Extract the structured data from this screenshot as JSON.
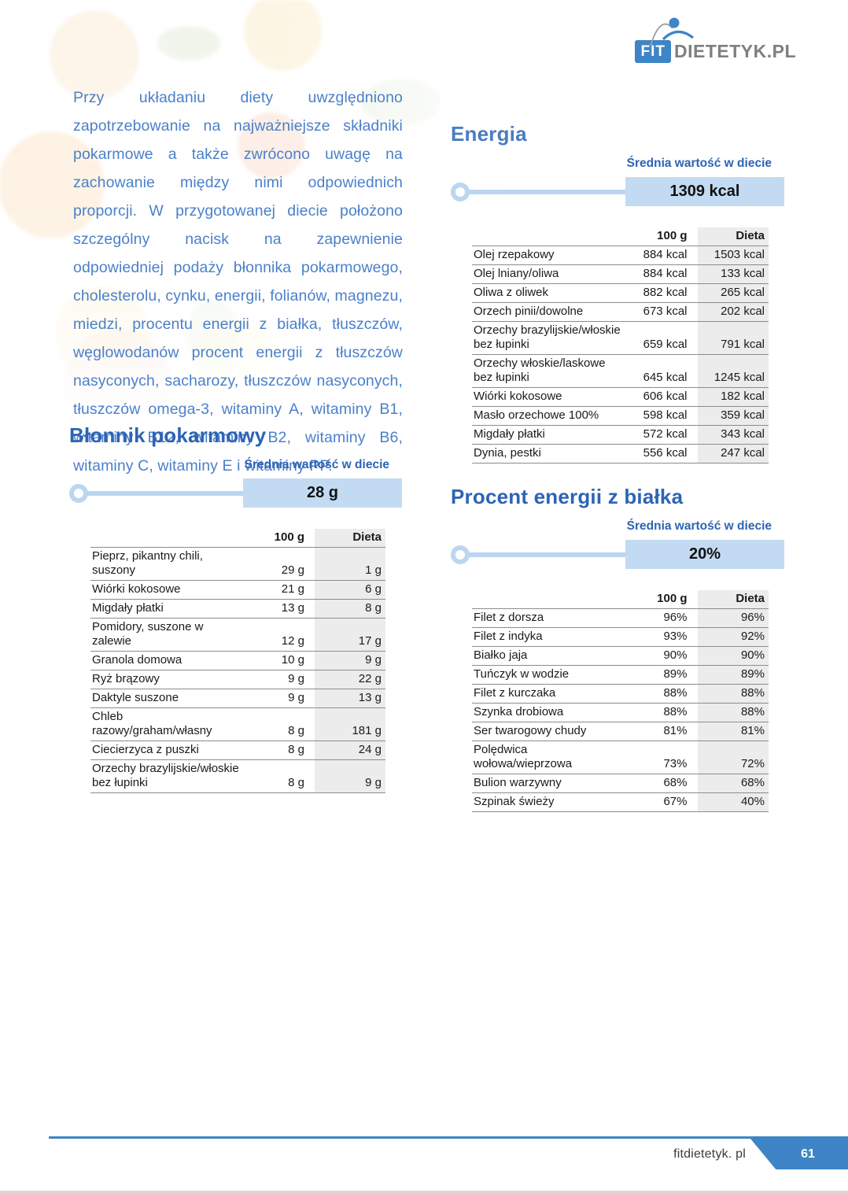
{
  "colors": {
    "brand-blue": "#3d85c6",
    "heading-blue": "#2d64b4",
    "heading-light": "#4a7cc2",
    "intro-blue": "#4b80ca",
    "pill-bg": "#c3dbf2",
    "line-blue": "#bcd6f0",
    "dieta-bg": "#ececec",
    "border-gray": "#8c8c8c",
    "text-dark": "#1a1a1a",
    "logo-gray": "#7f7f7f",
    "footer-text": "#3a3a3a",
    "strip-gray": "#d8d8d8"
  },
  "logo": {
    "fit": "FIT",
    "rest": "DIETETYK.PL"
  },
  "intro": "Przy układaniu diety uwzględniono zapotrzebowanie na najważniejsze składniki pokarmowe a także zwrócono uwagę na zachowanie między nimi odpowiednich proporcji. W przygotowanej diecie położono szczególny nacisk na zapewnienie odpowiedniej podaży błonnika pokarmowego, cholesterolu, cynku, energii, folianów, magnezu, miedzi, procentu energii z białka, tłuszczów, węglowodanów procent energii z tłuszczów nasyconych, sacharozy, tłuszczów nasyconych, tłuszczów omega-3, witaminy A, witaminy B1, witaminy B12, witaminy B2, witaminy B6, witaminy C, witaminy E i witaminy PP.",
  "sections": {
    "blonnik": {
      "title": "Błonnik pokarmowy",
      "avg_label": "Średnia wartość w diecie",
      "avg_value": "28 g",
      "col_100g": "100 g",
      "col_dieta": "Dieta",
      "rows": [
        {
          "name": "Pieprz, pikantny chili, suszony",
          "v100": "29 g",
          "dieta": "1 g"
        },
        {
          "name": "Wiórki kokosowe",
          "v100": "21 g",
          "dieta": "6 g"
        },
        {
          "name": "Migdały płatki",
          "v100": "13 g",
          "dieta": "8 g"
        },
        {
          "name": "Pomidory, suszone w zalewie",
          "v100": "12 g",
          "dieta": "17 g"
        },
        {
          "name": "Granola domowa",
          "v100": "10 g",
          "dieta": "9 g"
        },
        {
          "name": "Ryż brązowy",
          "v100": "9 g",
          "dieta": "22 g"
        },
        {
          "name": "Daktyle suszone",
          "v100": "9 g",
          "dieta": "13 g"
        },
        {
          "name": "Chleb razowy/graham/własny",
          "v100": "8 g",
          "dieta": "181 g"
        },
        {
          "name": "Ciecierzyca z puszki",
          "v100": "8 g",
          "dieta": "24 g"
        },
        {
          "name": "Orzechy brazylijskie/włoskie bez łupinki",
          "v100": "8 g",
          "dieta": "9 g"
        }
      ]
    },
    "energia": {
      "title": "Energia",
      "avg_label": "Średnia wartość w diecie",
      "avg_value": "1309 kcal",
      "col_100g": "100 g",
      "col_dieta": "Dieta",
      "rows": [
        {
          "name": "Olej rzepakowy",
          "v100": "884 kcal",
          "dieta": "1503 kcal"
        },
        {
          "name": "Olej lniany/oliwa",
          "v100": "884 kcal",
          "dieta": "133 kcal"
        },
        {
          "name": "Oliwa z oliwek",
          "v100": "882 kcal",
          "dieta": "265 kcal"
        },
        {
          "name": "Orzech pinii/dowolne",
          "v100": "673 kcal",
          "dieta": "202 kcal"
        },
        {
          "name": "Orzechy brazylijskie/włoskie bez łupinki",
          "v100": "659 kcal",
          "dieta": "791 kcal"
        },
        {
          "name": "Orzechy włoskie/laskowe bez łupinki",
          "v100": "645 kcal",
          "dieta": "1245 kcal"
        },
        {
          "name": "Wiórki kokosowe",
          "v100": "606 kcal",
          "dieta": "182 kcal"
        },
        {
          "name": "Masło orzechowe 100%",
          "v100": "598 kcal",
          "dieta": "359 kcal"
        },
        {
          "name": "Migdały płatki",
          "v100": "572 kcal",
          "dieta": "343 kcal"
        },
        {
          "name": "Dynia, pestki",
          "v100": "556 kcal",
          "dieta": "247 kcal"
        }
      ]
    },
    "bialko": {
      "title": "Procent energii z białka",
      "avg_label": "Średnia wartość w diecie",
      "avg_value": "20%",
      "col_100g": "100 g",
      "col_dieta": "Dieta",
      "rows": [
        {
          "name": "Filet z dorsza",
          "v100": "96%",
          "dieta": "96%"
        },
        {
          "name": "Filet z indyka",
          "v100": "93%",
          "dieta": "92%"
        },
        {
          "name": "Białko jaja",
          "v100": "90%",
          "dieta": "90%"
        },
        {
          "name": "Tuńczyk w wodzie",
          "v100": "89%",
          "dieta": "89%"
        },
        {
          "name": "Filet z kurczaka",
          "v100": "88%",
          "dieta": "88%"
        },
        {
          "name": "Szynka drobiowa",
          "v100": "88%",
          "dieta": "88%"
        },
        {
          "name": "Ser twarogowy chudy",
          "v100": "81%",
          "dieta": "81%"
        },
        {
          "name": "Polędwica wołowa/wieprzowa",
          "v100": "73%",
          "dieta": "72%"
        },
        {
          "name": "Bulion warzywny",
          "v100": "68%",
          "dieta": "68%"
        },
        {
          "name": "Szpinak świeży",
          "v100": "67%",
          "dieta": "40%"
        }
      ]
    }
  },
  "footer": {
    "site": "fitdietetyk. pl",
    "page": "61"
  }
}
